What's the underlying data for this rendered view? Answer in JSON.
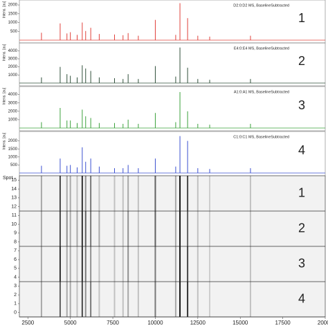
{
  "chart_data": [
    {
      "type": "stick",
      "title": "D2:0:D2 MS, BaselineSubtracted",
      "label": "1",
      "y_label": "Intens. [au]",
      "color": "#e0403a",
      "x": [
        3300,
        4400,
        4800,
        5000,
        5400,
        5700,
        5900,
        6200,
        6700,
        7600,
        8100,
        8400,
        9000,
        10000,
        11200,
        11450,
        11900,
        12500,
        13200,
        15600
      ],
      "values": [
        420,
        950,
        380,
        450,
        300,
        1000,
        520,
        700,
        350,
        320,
        280,
        400,
        250,
        1150,
        300,
        2100,
        1250,
        250,
        200,
        250
      ],
      "xlim": [
        2000,
        20000
      ],
      "ylim": [
        0,
        2200
      ],
      "yticks": [
        500,
        1000,
        1500,
        2000
      ]
    },
    {
      "type": "stick",
      "title": "E4:0:E4 MS, BaselineSubtracted",
      "label": "2",
      "y_label": "Intens. [au]",
      "color": "#2f4f3a",
      "x": [
        3300,
        4400,
        4800,
        5000,
        5400,
        5700,
        5900,
        6200,
        6700,
        7600,
        8100,
        8400,
        9000,
        10000,
        11200,
        11450,
        11900,
        12500,
        13200,
        15600
      ],
      "values": [
        700,
        2000,
        1100,
        900,
        700,
        2200,
        1800,
        1500,
        700,
        600,
        500,
        1100,
        500,
        2100,
        800,
        4400,
        1900,
        500,
        400,
        500
      ],
      "xlim": [
        2000,
        20000
      ],
      "ylim": [
        0,
        4800
      ],
      "yticks": [
        1000,
        2000,
        3000,
        4000
      ]
    },
    {
      "type": "stick",
      "title": "A1:0:A1 MS, BaselineSubtracted",
      "label": "3",
      "y_label": "Intens. [au]",
      "color": "#3aa03a",
      "x": [
        3300,
        4400,
        4800,
        5000,
        5400,
        5700,
        5900,
        6200,
        6700,
        7600,
        8100,
        8400,
        9000,
        10000,
        11200,
        11450,
        11900,
        12500,
        13200,
        15600
      ],
      "values": [
        700,
        2400,
        900,
        900,
        600,
        2200,
        1400,
        1200,
        600,
        600,
        500,
        1000,
        500,
        1800,
        700,
        4300,
        2000,
        500,
        400,
        500
      ],
      "xlim": [
        2000,
        20000
      ],
      "ylim": [
        0,
        4800
      ],
      "yticks": [
        1000,
        2000,
        3000,
        4000
      ]
    },
    {
      "type": "stick",
      "title": "C1:0:C1 MS, BaselineSubtracted",
      "label": "4",
      "y_label": "Intens. [au]",
      "color": "#3a4fd0",
      "x": [
        3300,
        4400,
        4800,
        5000,
        5400,
        5700,
        5900,
        6200,
        6700,
        7600,
        8100,
        8400,
        9000,
        10000,
        11200,
        11450,
        11900,
        12500,
        13200,
        15600
      ],
      "values": [
        450,
        900,
        450,
        500,
        350,
        1600,
        700,
        900,
        400,
        300,
        300,
        500,
        300,
        900,
        400,
        2300,
        2000,
        300,
        250,
        300
      ],
      "xlim": [
        2000,
        20000
      ],
      "ylim": [
        0,
        2500
      ],
      "yticks": [
        500,
        1000,
        1500,
        2000
      ]
    },
    {
      "type": "gel",
      "y_label": "Spot",
      "color": "#000000",
      "x": [
        3300,
        4400,
        4800,
        5000,
        5400,
        5700,
        5900,
        6200,
        6700,
        7600,
        8100,
        8400,
        9000,
        10000,
        11200,
        11450,
        11900,
        12500,
        13200,
        15600
      ],
      "xlim": [
        2000,
        20000
      ],
      "xticks": [
        2500,
        5000,
        7500,
        10000,
        12500,
        15000,
        17500,
        20000
      ],
      "ylim": [
        -0.5,
        15.5
      ],
      "yticks": [
        0,
        1,
        2,
        3,
        4,
        5,
        6,
        7,
        8,
        9,
        10,
        11,
        12,
        13,
        14,
        15
      ],
      "groups": [
        {
          "label": "1",
          "range": [
            11.5,
            15.5
          ],
          "values": [
            0.3,
            0.7,
            0.3,
            0.3,
            0.2,
            0.8,
            0.4,
            0.5,
            0.2,
            0.2,
            0.2,
            0.3,
            0.2,
            0.6,
            0.3,
            0.9,
            0.7,
            0.2,
            0.15,
            0.2
          ]
        },
        {
          "label": "2",
          "range": [
            7.5,
            11.5
          ],
          "values": [
            0.3,
            0.7,
            0.4,
            0.3,
            0.3,
            0.8,
            0.6,
            0.5,
            0.3,
            0.2,
            0.2,
            0.4,
            0.2,
            0.6,
            0.3,
            0.9,
            0.6,
            0.2,
            0.15,
            0.2
          ]
        },
        {
          "label": "3",
          "range": [
            3.5,
            7.5
          ],
          "values": [
            0.3,
            0.8,
            0.3,
            0.3,
            0.2,
            0.8,
            0.5,
            0.4,
            0.2,
            0.2,
            0.2,
            0.4,
            0.2,
            0.5,
            0.3,
            0.9,
            0.7,
            0.2,
            0.15,
            0.2
          ]
        },
        {
          "label": "4",
          "range": [
            -0.5,
            3.5
          ],
          "values": [
            0.3,
            0.6,
            0.3,
            0.3,
            0.2,
            0.7,
            0.4,
            0.5,
            0.2,
            0.2,
            0.2,
            0.3,
            0.2,
            0.5,
            0.3,
            0.9,
            0.8,
            0.2,
            0.15,
            0.2
          ]
        }
      ]
    }
  ]
}
